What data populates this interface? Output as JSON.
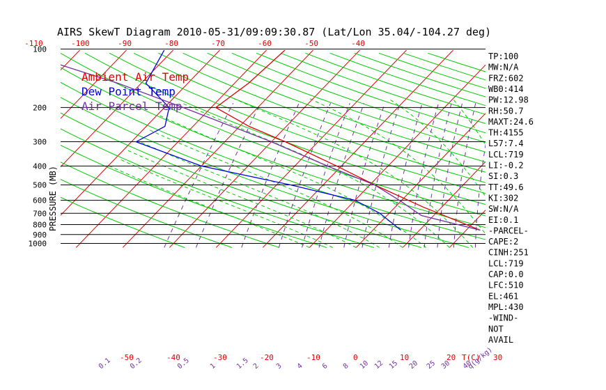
{
  "title": "AIRS SkewT Diagram 2010-05-31/09:09:30.87 (Lat/Lon 35.04/-104.27 deg)",
  "ylabel": "PRESSURE (MB)",
  "legend": [
    {
      "label": "Ambient Air Temp",
      "color": "#e00000"
    },
    {
      "label": "Dew Point Temp",
      "color": "#0000e0"
    },
    {
      "label": "Air Parcel Temp",
      "color": "#7030a0"
    }
  ],
  "top_axis_labels": [
    "-120",
    "-110",
    "-100",
    "-90",
    "-80",
    "-70",
    "-60",
    "-50",
    "-40"
  ],
  "bottom_axis_labels": [
    "-50",
    "-40",
    "-30",
    "-20",
    "-10",
    "0",
    "10",
    "20",
    "30",
    "T(C)"
  ],
  "mixing_ratio_labels": [
    "0.1",
    "0.2",
    "0.5",
    "1",
    "1.5",
    "2",
    "3",
    "4",
    "6",
    "8",
    "10",
    "12",
    "15",
    "20",
    "25",
    "30",
    "40",
    "q(g/kg)"
  ],
  "pressure_labels": [
    "100",
    "200",
    "300",
    "400",
    "500",
    "600",
    "700",
    "800",
    "900",
    "1000"
  ],
  "indices": [
    "TP:100",
    "MW:N/A",
    "FRZ:602",
    "WB0:414",
    "PW:12.98",
    "RH:50.7",
    "MAXT:24.6",
    "TH:4155",
    "L57:7.4",
    "LCL:719",
    "LI:-0.2",
    "SI:0.3",
    "TT:49.6",
    "KI:302",
    "SW:N/A",
    "EI:0.1",
    "-PARCEL-",
    "CAPE:2",
    "CINH:251",
    "LCL:719",
    "CAP:0.0",
    "LFC:510",
    "EL:461",
    "MPL:430",
    "-WIND-",
    "NOT",
    "AVAIL"
  ],
  "colors": {
    "isotherm": "#e00000",
    "dry_adiabat": "#00cc00",
    "moist_adiabat": "#00cc00",
    "mixing_ratio": "#7030a0",
    "isobar": "#000000",
    "temperature": "#e00000",
    "dewpoint": "#0000e0",
    "parcel": "#7030a0"
  },
  "chart_data": {
    "type": "line",
    "title": "AIRS SkewT Diagram 2010-05-31/09:09:30.87 (Lat/Lon 35.04/-104.27 deg)",
    "xlabel": "T(C)",
    "ylabel": "PRESSURE (MB)",
    "ylim": [
      1000,
      100
    ],
    "y_scale": "log",
    "grid": true,
    "legend_position": "top-left",
    "series": [
      {
        "name": "Ambient Air Temp",
        "points": [
          {
            "p": 855,
            "t": 23
          },
          {
            "p": 650,
            "t": 6
          },
          {
            "p": 500,
            "t": -9
          },
          {
            "p": 400,
            "t": -21
          },
          {
            "p": 300,
            "t": -37
          },
          {
            "p": 250,
            "t": -48
          },
          {
            "p": 200,
            "t": -59
          },
          {
            "p": 150,
            "t": -57
          },
          {
            "p": 100,
            "t": -56
          }
        ]
      },
      {
        "name": "Dew Point Temp",
        "points": [
          {
            "p": 855,
            "t": 6
          },
          {
            "p": 700,
            "t": -2
          },
          {
            "p": 600,
            "t": -10
          },
          {
            "p": 500,
            "t": -27
          },
          {
            "p": 400,
            "t": -50
          },
          {
            "p": 300,
            "t": -69
          },
          {
            "p": 250,
            "t": -66
          },
          {
            "p": 200,
            "t": -69
          },
          {
            "p": 150,
            "t": -79
          },
          {
            "p": 100,
            "t": -82
          }
        ]
      },
      {
        "name": "Air Parcel Temp",
        "points": [
          {
            "p": 855,
            "t": 23
          },
          {
            "p": 719,
            "t": 7.4
          },
          {
            "p": 600,
            "t": -0.5
          },
          {
            "p": 500,
            "t": -9
          },
          {
            "p": 400,
            "t": -23
          },
          {
            "p": 300,
            "t": -40
          },
          {
            "p": 200,
            "t": -66
          },
          {
            "p": 150,
            "t": -85
          },
          {
            "p": 100,
            "t": -115
          }
        ]
      }
    ]
  }
}
